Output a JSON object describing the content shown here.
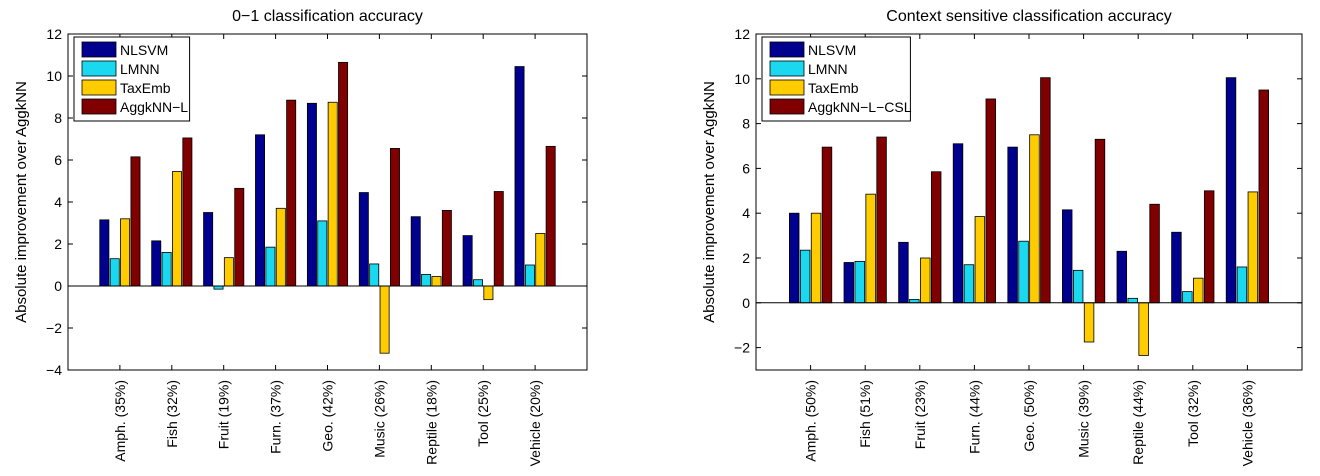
{
  "chart_data": [
    {
      "type": "bar",
      "title": "0−1 classification accuracy",
      "xlabel": "",
      "ylabel": "Absolute improvement over AggkNN",
      "ylim": [
        -4,
        12
      ],
      "yticks": [
        -4,
        -2,
        0,
        2,
        4,
        6,
        8,
        10,
        12
      ],
      "grid": false,
      "legend_position": "top-left",
      "categories": [
        "Amph. (35%)",
        "Fish (32%)",
        "Fruit (19%)",
        "Furn. (37%)",
        "Geo. (42%)",
        "Music (26%)",
        "Reptile (18%)",
        "Tool (25%)",
        "Vehicle (20%)"
      ],
      "series": [
        {
          "name": "NLSVM",
          "color": "#00008f",
          "values": [
            3.15,
            2.15,
            3.5,
            7.2,
            8.7,
            4.45,
            3.3,
            2.4,
            10.45
          ]
        },
        {
          "name": "LMNN",
          "color": "#1ad8f0",
          "values": [
            1.3,
            1.6,
            -0.15,
            1.85,
            3.1,
            1.05,
            0.55,
            0.3,
            1.0
          ]
        },
        {
          "name": "TaxEmb",
          "color": "#ffcc00",
          "values": [
            3.2,
            5.45,
            1.35,
            3.7,
            8.75,
            -3.2,
            0.45,
            -0.65,
            2.5
          ]
        },
        {
          "name": "AggkNN−L",
          "color": "#800000",
          "values": [
            6.15,
            7.05,
            4.65,
            8.85,
            10.65,
            6.55,
            3.6,
            4.5,
            6.65
          ]
        }
      ]
    },
    {
      "type": "bar",
      "title": "Context sensitive classification accuracy",
      "xlabel": "",
      "ylabel": "Absolute improvement over AggkNN",
      "ylim": [
        -3,
        12
      ],
      "yticks": [
        -2,
        0,
        2,
        4,
        6,
        8,
        10,
        12
      ],
      "grid": false,
      "legend_position": "top-left",
      "categories": [
        "Amph. (50%)",
        "Fish (51%)",
        "Fruit (23%)",
        "Furn. (44%)",
        "Geo. (50%)",
        "Music (39%)",
        "Reptile (44%)",
        "Tool (32%)",
        "Vehicle (36%)"
      ],
      "series": [
        {
          "name": "NLSVM",
          "color": "#00008f",
          "values": [
            4.0,
            1.8,
            2.7,
            7.1,
            6.95,
            4.15,
            2.3,
            3.15,
            10.05
          ]
        },
        {
          "name": "LMNN",
          "color": "#1ad8f0",
          "values": [
            2.35,
            1.85,
            0.15,
            1.7,
            2.75,
            1.45,
            0.2,
            0.5,
            1.6
          ]
        },
        {
          "name": "TaxEmb",
          "color": "#ffcc00",
          "values": [
            4.0,
            4.85,
            2.0,
            3.85,
            7.5,
            -1.75,
            -2.35,
            1.1,
            4.95
          ]
        },
        {
          "name": "AggkNN−L−CSL",
          "color": "#800000",
          "values": [
            6.95,
            7.4,
            5.85,
            9.1,
            10.05,
            7.3,
            4.4,
            5.0,
            9.5
          ]
        }
      ]
    }
  ]
}
